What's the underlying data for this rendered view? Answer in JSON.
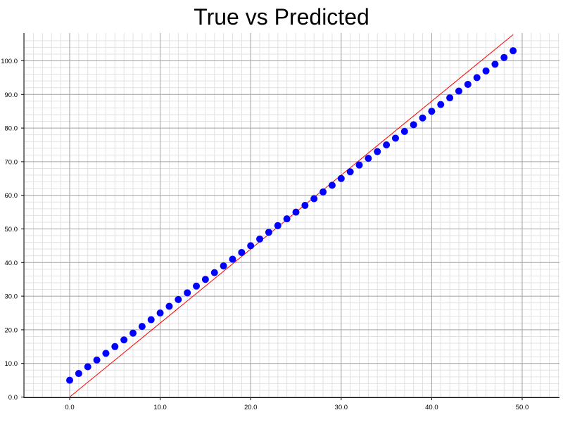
{
  "chart_data": {
    "type": "scatter",
    "title": "True vs Predicted",
    "xlabel": "",
    "ylabel": "",
    "xlim": [
      -5,
      54
    ],
    "ylim": [
      0,
      107
    ],
    "grid": true,
    "x_ticks": [
      0,
      10,
      20,
      30,
      40,
      50
    ],
    "y_ticks": [
      0,
      10,
      20,
      30,
      40,
      50,
      60,
      70,
      80,
      90,
      100
    ],
    "x_tick_labels": [
      "0.0",
      "10.0",
      "20.0",
      "30.0",
      "40.0",
      "50.0"
    ],
    "y_tick_labels": [
      "0.0",
      "10.0",
      "20.0",
      "30.0",
      "40.0",
      "50.0",
      "60.0",
      "70.0",
      "80.0",
      "90.0",
      "100.0"
    ],
    "series": [
      {
        "type": "scatter",
        "color": "#0000ff",
        "x": [
          0,
          1,
          2,
          3,
          4,
          5,
          6,
          7,
          8,
          9,
          10,
          11,
          12,
          13,
          14,
          15,
          16,
          17,
          18,
          19,
          20,
          21,
          22,
          23,
          24,
          25,
          26,
          27,
          28,
          29,
          30,
          31,
          32,
          33,
          34,
          35,
          36,
          37,
          38,
          39,
          40,
          41,
          42,
          43,
          44,
          45,
          46,
          47,
          48,
          49
        ],
        "y": [
          5,
          7,
          9,
          11,
          13,
          15,
          17,
          19,
          21,
          23,
          25,
          27,
          29,
          31,
          33,
          35,
          37,
          39,
          41,
          43,
          45,
          47,
          49,
          51,
          53,
          55,
          57,
          59,
          61,
          63,
          65,
          67,
          69,
          71,
          73,
          75,
          77,
          79,
          81,
          83,
          85,
          87,
          89,
          91,
          93,
          95,
          97,
          99,
          101,
          103
        ]
      },
      {
        "type": "line",
        "color": "#ff0000",
        "x": [
          0,
          49
        ],
        "y": [
          0,
          107.8
        ]
      }
    ]
  }
}
